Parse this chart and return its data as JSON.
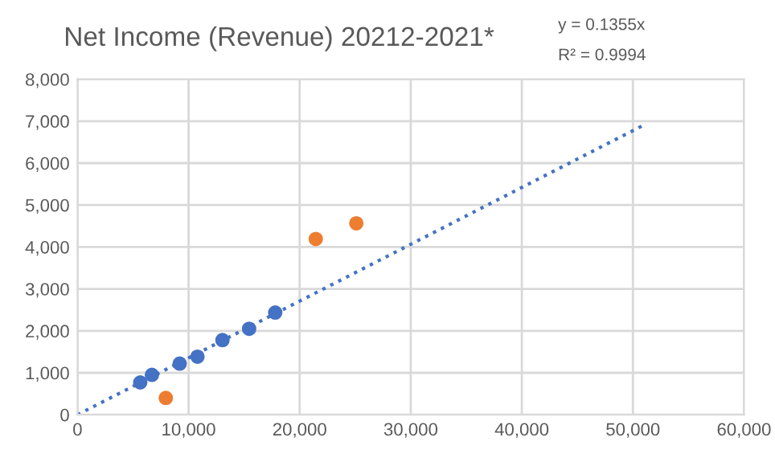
{
  "chart_data": {
    "type": "scatter",
    "title": "Net Income (Revenue) 20212-2021*",
    "annotations": [
      "y = 0.1355x",
      "R² = 0.9994"
    ],
    "xlim": [
      0,
      60000
    ],
    "xticks": [
      {
        "value": 0,
        "label": "0"
      },
      {
        "value": 10000,
        "label": "10,000"
      },
      {
        "value": 20000,
        "label": "20,000"
      },
      {
        "value": 30000,
        "label": "30,000"
      },
      {
        "value": 40000,
        "label": "40,000"
      },
      {
        "value": 50000,
        "label": "50,000"
      },
      {
        "value": 60000,
        "label": "60,000"
      }
    ],
    "ylim": [
      0,
      8000
    ],
    "yticks": [
      {
        "value": 0,
        "label": "0"
      },
      {
        "value": 1000,
        "label": "1,000"
      },
      {
        "value": 2000,
        "label": "2,000"
      },
      {
        "value": 3000,
        "label": "3,000"
      },
      {
        "value": 4000,
        "label": "4,000"
      },
      {
        "value": 5000,
        "label": "5,000"
      },
      {
        "value": 6000,
        "label": "6,000"
      },
      {
        "value": 7000,
        "label": "7,000"
      },
      {
        "value": 8000,
        "label": "8,000"
      }
    ],
    "grid": true,
    "marker": "circle",
    "series": [
      {
        "color": "#4472c4",
        "x": [
          5650,
          6700,
          9200,
          10800,
          13050,
          15450,
          17800
        ],
        "values": [
          770,
          950,
          1220,
          1385,
          1780,
          2050,
          2435
        ]
      },
      {
        "color": "#ed7d31",
        "x": [
          7950,
          21450,
          25100
        ],
        "values": [
          400,
          4190,
          4565
        ]
      },
      {
        "type": "line",
        "color": "#4472c4",
        "line_style": "dotted",
        "marker": "none",
        "x": [
          0,
          51000
        ],
        "values": [
          0,
          6910
        ]
      }
    ]
  }
}
